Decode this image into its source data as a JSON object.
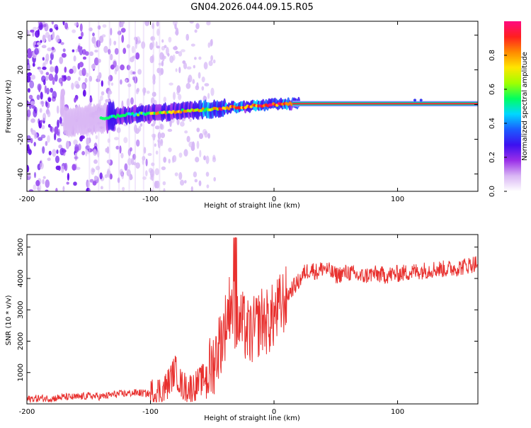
{
  "title": "GN04.2026.044.09.15.R05",
  "chart_data": [
    {
      "type": "heatmap",
      "name": "spectrogram",
      "xlabel": "Height of straight line (km)",
      "ylabel": "Frequency (Hz)",
      "xlim": [
        -200,
        165
      ],
      "ylim": [
        -50,
        48
      ],
      "xticks": [
        -200,
        -100,
        0,
        100
      ],
      "xtick_labels": [
        "-200",
        "-100",
        "0",
        "100"
      ],
      "yticks": [
        -40,
        -20,
        0,
        20,
        40
      ],
      "ytick_labels": [
        "-40",
        "-20",
        "0",
        "20",
        "40"
      ],
      "colorbar": {
        "label": "Normalized spectral amplitude",
        "range": [
          0,
          1
        ],
        "ticks": [
          0,
          0.2,
          0.4,
          0.6,
          0.8
        ],
        "tick_labels": [
          "0.0",
          "0.2",
          "0.4",
          "0.6",
          "0.8"
        ],
        "colors": [
          "#ffffff",
          "#d9b6f4",
          "#9a2ee8",
          "#3c10f0",
          "#1b5cff",
          "#00d8ff",
          "#00ff60",
          "#a0ff00",
          "#ffe600",
          "#ff8a00",
          "#ff1f1f",
          "#ff0a80"
        ]
      },
      "ridge": {
        "description": "spectral line near 0 Hz",
        "points": [
          [
            -170,
            -10
          ],
          [
            -140,
            -8
          ],
          [
            -120,
            -6
          ],
          [
            -100,
            -5
          ],
          [
            -80,
            -4
          ],
          [
            -60,
            -3
          ],
          [
            -40,
            -2
          ],
          [
            -20,
            -1
          ],
          [
            0,
            0
          ],
          [
            20,
            0.5
          ],
          [
            165,
            0.5
          ]
        ]
      },
      "noise_region_x": [
        -200,
        -88
      ]
    },
    {
      "type": "line",
      "name": "snr",
      "xlabel": "Height of straight line (km)",
      "ylabel": "SNR (10 * v/v)",
      "xlim": [
        -200,
        165
      ],
      "ylim": [
        0,
        5400
      ],
      "xticks": [
        -200,
        -100,
        0,
        100
      ],
      "xtick_labels": [
        "-200",
        "-100",
        "0",
        "100"
      ],
      "yticks": [
        1000,
        2000,
        3000,
        4000,
        5000
      ],
      "ytick_labels": [
        "1000",
        "2000",
        "3000",
        "4000",
        "5000"
      ],
      "color": "#e8302e",
      "series": [
        {
          "name": "SNR",
          "x": [
            -200,
            -190,
            -180,
            -170,
            -160,
            -150,
            -140,
            -130,
            -120,
            -110,
            -100,
            -95,
            -90,
            -85,
            -80,
            -75,
            -70,
            -65,
            -60,
            -55,
            -50,
            -45,
            -40,
            -35,
            -30,
            -25,
            -20,
            -15,
            -10,
            -5,
            0,
            5,
            10,
            15,
            20,
            25,
            30,
            35,
            40,
            50,
            60,
            70,
            80,
            90,
            100,
            110,
            120,
            130,
            140,
            150,
            160,
            165
          ],
          "values": [
            150,
            180,
            170,
            220,
            210,
            260,
            230,
            300,
            330,
            360,
            320,
            400,
            420,
            700,
            1100,
            600,
            500,
            550,
            700,
            900,
            1200,
            1800,
            2400,
            3300,
            2600,
            2500,
            2200,
            2400,
            2700,
            2600,
            2800,
            3100,
            3400,
            3700,
            3900,
            4200,
            4300,
            4200,
            4350,
            4100,
            4200,
            4050,
            4150,
            4100,
            4150,
            4200,
            4250,
            4300,
            4300,
            4350,
            4450,
            4500
          ]
        }
      ]
    }
  ]
}
